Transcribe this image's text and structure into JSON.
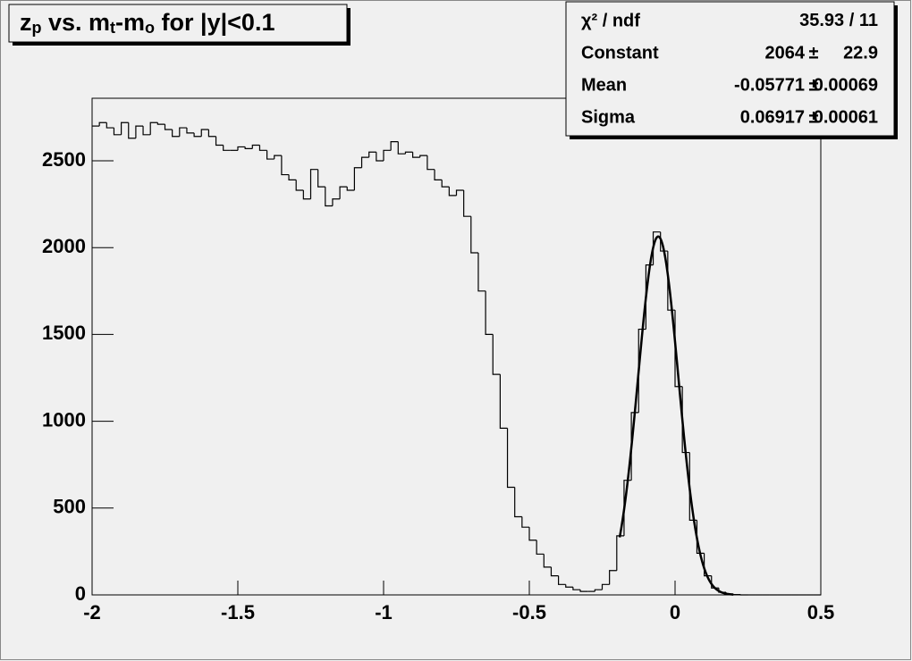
{
  "chart_data": {
    "type": "histogram",
    "title": [
      {
        "text": "z",
        "sub": false
      },
      {
        "text": "p",
        "sub": true
      },
      {
        "text": " vs. m",
        "sub": false
      },
      {
        "text": "t",
        "sub": true
      },
      {
        "text": "-m",
        "sub": false
      },
      {
        "text": "o",
        "sub": true
      },
      {
        "text": " for |y|<0.1",
        "sub": false
      }
    ],
    "bins": [
      -2,
      -1.975,
      -1.95,
      -1.925,
      -1.9,
      -1.875,
      -1.85,
      -1.825,
      -1.8,
      -1.775,
      -1.75,
      -1.725,
      -1.7,
      -1.675,
      -1.65,
      -1.625,
      -1.6,
      -1.575,
      -1.55,
      -1.525,
      -1.5,
      -1.475,
      -1.45,
      -1.425,
      -1.4,
      -1.375,
      -1.35,
      -1.325,
      -1.3,
      -1.275,
      -1.25,
      -1.225,
      -1.2,
      -1.175,
      -1.15,
      -1.125,
      -1.1,
      -1.075,
      -1.05,
      -1.025,
      -1,
      -0.975,
      -0.95,
      -0.925,
      -0.9,
      -0.875,
      -0.85,
      -0.825,
      -0.8,
      -0.775,
      -0.75,
      -0.725,
      -0.7,
      -0.675,
      -0.65,
      -0.625,
      -0.6,
      -0.575,
      -0.55,
      -0.525,
      -0.5,
      -0.475,
      -0.45,
      -0.425,
      -0.4,
      -0.375,
      -0.35,
      -0.325,
      -0.3,
      -0.275,
      -0.25,
      -0.225,
      -0.2,
      -0.175,
      -0.15,
      -0.125,
      -0.1,
      -0.075,
      -0.05,
      -0.025,
      0,
      0.025,
      0.05,
      0.075,
      0.1,
      0.125,
      0.15,
      0.175,
      0.2,
      0.225,
      0.25,
      0.275,
      0.3,
      0.325,
      0.35,
      0.375,
      0.4,
      0.425,
      0.45,
      0.475,
      0.5
    ],
    "values": [
      2700,
      2720,
      2690,
      2650,
      2720,
      2630,
      2700,
      2650,
      2720,
      2710,
      2680,
      2640,
      2690,
      2660,
      2640,
      2680,
      2640,
      2590,
      2560,
      2560,
      2580,
      2570,
      2590,
      2560,
      2510,
      2530,
      2420,
      2390,
      2330,
      2280,
      2450,
      2350,
      2240,
      2280,
      2350,
      2330,
      2460,
      2520,
      2550,
      2500,
      2560,
      2610,
      2540,
      2550,
      2520,
      2530,
      2450,
      2390,
      2350,
      2300,
      2330,
      2180,
      1970,
      1750,
      1500,
      1270,
      960,
      620,
      450,
      390,
      315,
      235,
      160,
      110,
      60,
      45,
      30,
      20,
      20,
      30,
      60,
      140,
      340,
      660,
      1050,
      1530,
      1900,
      2090,
      1980,
      1640,
      1200,
      820,
      430,
      240,
      110,
      40,
      15,
      5,
      2,
      0,
      0,
      0,
      0,
      0,
      0,
      0,
      0,
      0,
      0,
      0
    ],
    "color": "#000000",
    "xlim": [
      -2,
      0.5
    ],
    "xticks": [
      -2,
      -1.5,
      -1,
      -0.5,
      0,
      0.5
    ],
    "ylim": [
      0,
      2860
    ],
    "yticks": [
      0,
      500,
      1000,
      1500,
      2000,
      2500
    ],
    "fit": {
      "chi2_label": "χ² / ndf",
      "chi2": 35.93,
      "separator": " / ",
      "ndf": 11,
      "plus_minus": "±",
      "rows": [
        {
          "label": "Constant",
          "value": 2064,
          "error": 22.9
        },
        {
          "label": "Mean",
          "value": -0.05771,
          "error": 0.00069
        },
        {
          "label": "Sigma",
          "value": 0.06917,
          "error": 0.00061
        }
      ],
      "range": [
        -0.19,
        0.2
      ]
    }
  }
}
